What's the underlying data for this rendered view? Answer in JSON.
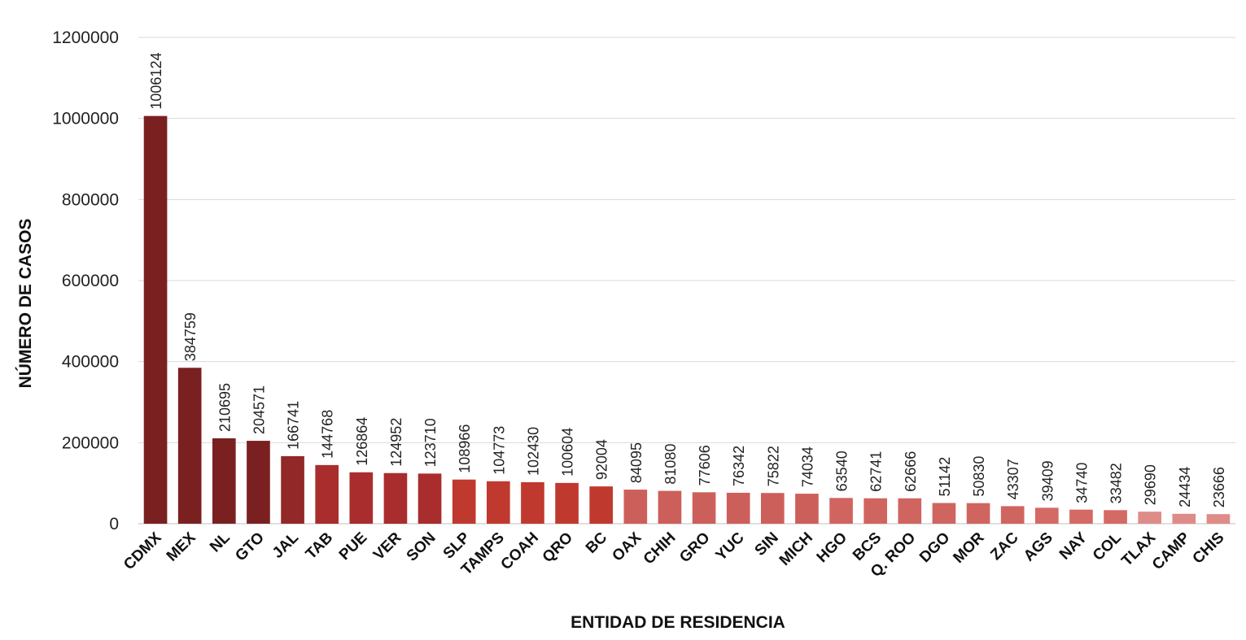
{
  "chart_data": {
    "type": "bar",
    "title": "",
    "xlabel": "ENTIDAD DE RESIDENCIA",
    "ylabel": "NÚMERO DE CASOS",
    "ylim": [
      0,
      1200000
    ],
    "yticks": [
      0,
      200000,
      400000,
      600000,
      800000,
      1000000,
      1200000
    ],
    "ytick_labels": [
      "0",
      "200000",
      "400000",
      "600000",
      "800000",
      "1000000",
      "1200000"
    ],
    "grid": true,
    "legend": "none",
    "categories": [
      "CDMX",
      "MEX",
      "NL",
      "GTO",
      "JAL",
      "TAB",
      "PUE",
      "VER",
      "SON",
      "SLP",
      "TAMPS",
      "COAH",
      "QRO",
      "BC",
      "OAX",
      "CHIH",
      "GRO",
      "YUC",
      "SIN",
      "MICH",
      "HGO",
      "BCS",
      "Q. ROO",
      "DGO",
      "MOR",
      "ZAC",
      "AGS",
      "NAY",
      "COL",
      "TLAX",
      "CAMP",
      "CHIS"
    ],
    "values": [
      1006124,
      384759,
      210695,
      204571,
      166741,
      144768,
      126864,
      124952,
      123710,
      108966,
      104773,
      102430,
      100604,
      92004,
      84095,
      81080,
      77606,
      76342,
      75822,
      74034,
      63540,
      62741,
      62666,
      51142,
      50830,
      43307,
      39409,
      34740,
      33482,
      29690,
      24434,
      23666
    ],
    "data_labels": [
      "1006124",
      "384759",
      "210695",
      "204571",
      "166741",
      "144768",
      "126864",
      "124952",
      "123710",
      "108966",
      "104773",
      "102430",
      "100604",
      "92004",
      "84095",
      "81080",
      "77606",
      "76342",
      "75822",
      "74034",
      "63540",
      "62741",
      "62666",
      "51142",
      "50830",
      "43307",
      "39409",
      "34740",
      "33482",
      "29690",
      "24434",
      "23666"
    ],
    "colors": [
      "#7b2020",
      "#7b2020",
      "#7b2020",
      "#7b2020",
      "#922828",
      "#a92d2d",
      "#a92d2d",
      "#a92d2d",
      "#a92d2d",
      "#c0392f",
      "#c0392f",
      "#c0392f",
      "#c0392f",
      "#c0392f",
      "#cd5f5a",
      "#cd5f5a",
      "#cd5f5a",
      "#cd5f5a",
      "#cd5f5a",
      "#cd5f5a",
      "#d06560",
      "#d06560",
      "#d06560",
      "#d06560",
      "#d06560",
      "#d06560",
      "#d46a65",
      "#d46a65",
      "#d46a65",
      "#de8c88",
      "#de8c88",
      "#de8c88"
    ]
  }
}
